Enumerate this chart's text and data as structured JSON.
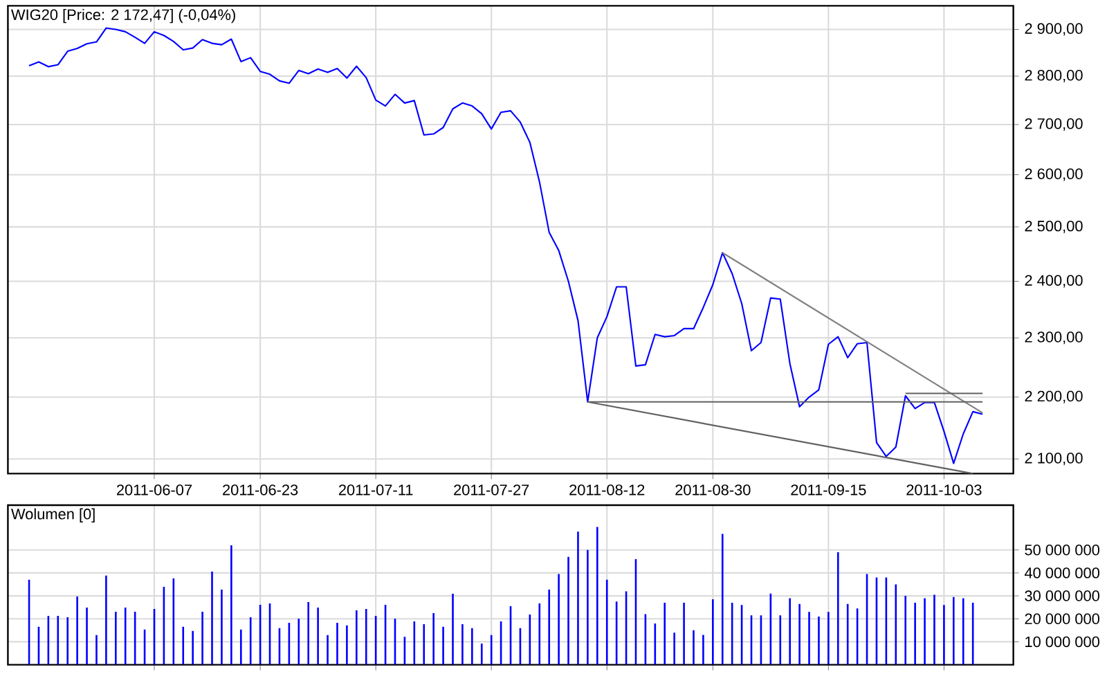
{
  "chart_data": [
    {
      "type": "line",
      "title": "WIG20 [Price: 2 172,47] (-0,04%)",
      "log": true,
      "grid": true,
      "categories": [
        null,
        null,
        null,
        null,
        null,
        null,
        null,
        null,
        null,
        null,
        null,
        null,
        null,
        "2011-06-07",
        null,
        null,
        null,
        null,
        null,
        null,
        null,
        null,
        null,
        null,
        "2011-06-23",
        null,
        null,
        null,
        null,
        null,
        null,
        null,
        null,
        null,
        null,
        null,
        "2011-07-11",
        null,
        null,
        null,
        null,
        null,
        null,
        null,
        null,
        null,
        null,
        null,
        "2011-07-27",
        null,
        null,
        null,
        null,
        null,
        null,
        null,
        null,
        null,
        null,
        null,
        "2011-08-12",
        null,
        null,
        null,
        null,
        null,
        null,
        null,
        null,
        null,
        null,
        "2011-08-30",
        null,
        null,
        null,
        null,
        null,
        null,
        null,
        null,
        null,
        null,
        null,
        "2011-09-15",
        null,
        null,
        null,
        null,
        null,
        null,
        null,
        null,
        null,
        null,
        null,
        "2011-10-03",
        null,
        null,
        null,
        null
      ],
      "series": [
        {
          "color": "#0000ff",
          "values": [
            2822,
            2830,
            2820,
            2824,
            2853,
            2859,
            2869,
            2873,
            2903,
            2900,
            2895,
            2883,
            2870,
            2895,
            2887,
            2874,
            2856,
            2860,
            2878,
            2870,
            2867,
            2879,
            2831,
            2839,
            2810,
            2804,
            2790,
            2785,
            2812,
            2805,
            2815,
            2808,
            2816,
            2796,
            2821,
            2797,
            2750,
            2738,
            2762,
            2744,
            2749,
            2679,
            2681,
            2694,
            2732,
            2744,
            2738,
            2722,
            2691,
            2725,
            2728,
            2705,
            2664,
            2586,
            2490,
            2456,
            2400,
            2330,
            2192,
            2300,
            2337,
            2390,
            2390,
            2252,
            2254,
            2306,
            2302,
            2304,
            2316,
            2316,
            2353,
            2394,
            2452,
            2414,
            2360,
            2278,
            2292,
            2370,
            2368,
            2256,
            2184,
            2200,
            2212,
            2289,
            2302,
            2266,
            2290,
            2292,
            2126,
            2104,
            2119,
            2202,
            2181,
            2191,
            2191,
            2144,
            2093,
            2140,
            2176,
            2172
          ]
        },
        {
          "color": "#808080",
          "values": [
            null,
            null,
            null,
            null,
            null,
            null,
            null,
            null,
            null,
            null,
            null,
            null,
            null,
            null,
            null,
            null,
            null,
            null,
            null,
            null,
            null,
            null,
            null,
            null,
            null,
            null,
            null,
            null,
            null,
            null,
            null,
            null,
            null,
            null,
            null,
            null,
            null,
            null,
            null,
            null,
            null,
            null,
            null,
            null,
            null,
            null,
            null,
            null,
            null,
            null,
            null,
            null,
            null,
            null,
            null,
            null,
            null,
            null,
            null,
            null,
            null,
            null,
            null,
            null,
            null,
            null,
            null,
            null,
            null,
            null,
            null,
            null,
            2452,
            null,
            null,
            null,
            null,
            null,
            null,
            null,
            null,
            null,
            null,
            null,
            null,
            null,
            null,
            null,
            null,
            null,
            null,
            null,
            null,
            null,
            null,
            null,
            null,
            null,
            null,
            2174
          ]
        },
        {
          "color": "#606060",
          "values": [
            null,
            null,
            null,
            null,
            null,
            null,
            null,
            null,
            null,
            null,
            null,
            null,
            null,
            null,
            null,
            null,
            null,
            null,
            null,
            null,
            null,
            null,
            null,
            null,
            null,
            null,
            null,
            null,
            null,
            null,
            null,
            null,
            null,
            null,
            null,
            null,
            null,
            null,
            null,
            null,
            null,
            null,
            null,
            null,
            null,
            null,
            null,
            null,
            null,
            null,
            null,
            null,
            null,
            null,
            null,
            null,
            null,
            null,
            2192,
            null,
            null,
            null,
            null,
            null,
            null,
            null,
            null,
            null,
            null,
            null,
            null,
            null,
            null,
            null,
            null,
            null,
            null,
            null,
            null,
            null,
            null,
            null,
            null,
            null,
            null,
            null,
            null,
            null,
            null,
            null,
            null,
            null,
            null,
            null,
            null,
            null,
            null,
            null,
            2077,
            null
          ]
        },
        {
          "color": "#606060",
          "values": [
            null,
            null,
            null,
            null,
            null,
            null,
            null,
            null,
            null,
            null,
            null,
            null,
            null,
            null,
            null,
            null,
            null,
            null,
            null,
            null,
            null,
            null,
            null,
            null,
            null,
            null,
            null,
            null,
            null,
            null,
            null,
            null,
            null,
            null,
            null,
            null,
            null,
            null,
            null,
            null,
            null,
            null,
            null,
            null,
            null,
            null,
            null,
            null,
            null,
            null,
            null,
            null,
            null,
            null,
            null,
            null,
            null,
            null,
            2192,
            null,
            null,
            null,
            null,
            null,
            null,
            null,
            null,
            null,
            null,
            null,
            null,
            null,
            null,
            null,
            null,
            null,
            null,
            null,
            null,
            null,
            null,
            null,
            null,
            null,
            null,
            null,
            null,
            null,
            null,
            null,
            null,
            null,
            null,
            null,
            null,
            null,
            null,
            null,
            null,
            2192
          ]
        },
        {
          "color": "#606060",
          "values": [
            null,
            null,
            null,
            null,
            null,
            null,
            null,
            null,
            null,
            null,
            null,
            null,
            null,
            null,
            null,
            null,
            null,
            null,
            null,
            null,
            null,
            null,
            null,
            null,
            null,
            null,
            null,
            null,
            null,
            null,
            null,
            null,
            null,
            null,
            null,
            null,
            null,
            null,
            null,
            null,
            null,
            null,
            null,
            null,
            null,
            null,
            null,
            null,
            null,
            null,
            null,
            null,
            null,
            null,
            null,
            null,
            null,
            null,
            null,
            null,
            null,
            null,
            null,
            null,
            null,
            null,
            null,
            null,
            null,
            null,
            null,
            null,
            null,
            null,
            null,
            null,
            null,
            null,
            null,
            null,
            null,
            null,
            null,
            null,
            null,
            null,
            null,
            null,
            null,
            null,
            null,
            2206,
            null,
            null,
            null,
            null,
            null,
            null,
            null,
            2206
          ]
        }
      ],
      "ylim": [
        2077,
        2952
      ],
      "yticks": [
        {
          "value": 2100,
          "label": "2 100,00"
        },
        {
          "value": 2200,
          "label": "2 200,00"
        },
        {
          "value": 2300,
          "label": "2 300,00"
        },
        {
          "value": 2400,
          "label": "2 400,00"
        },
        {
          "value": 2500,
          "label": "2 500,00"
        },
        {
          "value": 2600,
          "label": "2 600,00"
        },
        {
          "value": 2700,
          "label": "2 700,00"
        },
        {
          "value": 2800,
          "label": "2 800,00"
        },
        {
          "value": 2900,
          "label": "2 900,00"
        }
      ]
    },
    {
      "type": "bar",
      "title": "Wolumen [0]",
      "grid": true,
      "tick_labels": "y",
      "color": "#0000ff",
      "categories": [
        null,
        null,
        null,
        null,
        null,
        null,
        null,
        null,
        null,
        null,
        null,
        null,
        null,
        "2011-06-07",
        null,
        null,
        null,
        null,
        null,
        null,
        null,
        null,
        null,
        null,
        "2011-06-23",
        null,
        null,
        null,
        null,
        null,
        null,
        null,
        null,
        null,
        null,
        null,
        "2011-07-11",
        null,
        null,
        null,
        null,
        null,
        null,
        null,
        null,
        null,
        null,
        null,
        "2011-07-27",
        null,
        null,
        null,
        null,
        null,
        null,
        null,
        null,
        null,
        null,
        null,
        "2011-08-12",
        null,
        null,
        null,
        null,
        null,
        null,
        null,
        null,
        null,
        null,
        "2011-08-30",
        null,
        null,
        null,
        null,
        null,
        null,
        null,
        null,
        null,
        null,
        null,
        "2011-09-15",
        null,
        null,
        null,
        null,
        null,
        null,
        null,
        null,
        null,
        null,
        null,
        "2011-10-03",
        null,
        null,
        null,
        null
      ],
      "values": [
        37000000,
        16500000,
        21300000,
        21300000,
        20700000,
        29700000,
        24900000,
        12900000,
        38800000,
        23100000,
        24900000,
        23100000,
        15300000,
        24300000,
        33900000,
        37600000,
        16500000,
        14700000,
        23100000,
        40600000,
        32700000,
        52000000,
        15300000,
        20700000,
        26100000,
        26700000,
        15900000,
        18300000,
        20100000,
        27300000,
        24900000,
        12900000,
        18300000,
        17100000,
        23700000,
        24300000,
        21300000,
        26100000,
        20100000,
        12200000,
        18900000,
        17700000,
        22500000,
        16500000,
        30900000,
        17700000,
        15900000,
        9200000,
        12900000,
        18900000,
        25500000,
        15900000,
        21900000,
        26700000,
        32700000,
        39500000,
        47000000,
        58000000,
        50000000,
        60000000,
        37000000,
        27500000,
        32000000,
        46000000,
        22000000,
        18000000,
        27000000,
        14000000,
        27000000,
        15000000,
        13000000,
        28500000,
        57000000,
        27000000,
        26000000,
        21500000,
        21500000,
        31000000,
        21500000,
        29000000,
        26500000,
        23000000,
        21000000,
        23000000,
        49000000,
        26500000,
        24500000,
        39500000,
        38000000,
        38000000,
        35000000,
        30000000,
        27000000,
        29000000,
        30500000,
        26000000,
        29500000,
        29000000,
        27000000,
        0
      ],
      "ylim": [
        0,
        69500000
      ],
      "yticks": [
        {
          "value": 10000000,
          "label": "10 000 000"
        },
        {
          "value": 20000000,
          "label": "20 000 000"
        },
        {
          "value": 30000000,
          "label": "30 000 000"
        },
        {
          "value": 40000000,
          "label": "40 000 000"
        },
        {
          "value": 50000000,
          "label": "50 000 000"
        }
      ]
    }
  ]
}
